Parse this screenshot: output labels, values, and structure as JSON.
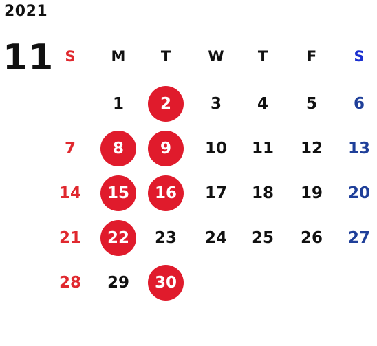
{
  "calendar": {
    "year": "2021",
    "month": "11",
    "weekdays": [
      "S",
      "M",
      "T",
      "W",
      "T",
      "F",
      "S"
    ],
    "first_weekday_index": 1,
    "days_in_month": 30,
    "marked_days": [
      2,
      8,
      9,
      15,
      16,
      22,
      30
    ],
    "colors": {
      "sunday": "#e0282e",
      "saturday": "#1f3f99",
      "saturday_header": "#1a2fd0",
      "weekday": "#111111",
      "marker": "#e01b2c",
      "marker_text": "#ffffff"
    }
  }
}
